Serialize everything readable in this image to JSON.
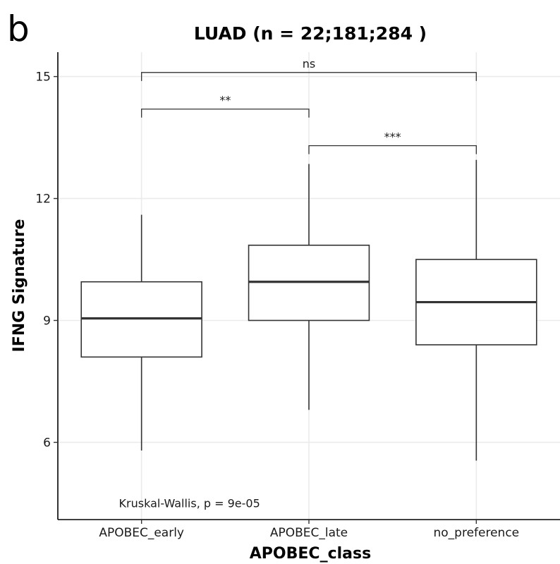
{
  "panel_label": "b",
  "chart_data": {
    "type": "box",
    "title": "LUAD (n =  22;181;284 )",
    "xlabel": "APOBEC_class",
    "ylabel": "IFNG Signature",
    "ylim": [
      4.1,
      15.6
    ],
    "yticks": [
      6,
      9,
      12,
      15
    ],
    "grid": true,
    "categories": [
      "APOBEC_early",
      "APOBEC_late",
      "no_preference"
    ],
    "boxes": [
      {
        "category": "APOBEC_early",
        "whisker_low": 5.8,
        "q1": 8.1,
        "median": 9.05,
        "q3": 9.95,
        "whisker_high": 11.6
      },
      {
        "category": "APOBEC_late",
        "whisker_low": 6.8,
        "q1": 9.0,
        "median": 9.95,
        "q3": 10.85,
        "whisker_high": 12.85
      },
      {
        "category": "no_preference",
        "whisker_low": 5.55,
        "q1": 8.4,
        "median": 9.45,
        "q3": 10.5,
        "whisker_high": 12.95
      }
    ],
    "comparisons": [
      {
        "from": "APOBEC_early",
        "to": "APOBEC_late",
        "y": 14.2,
        "label": "**"
      },
      {
        "from": "APOBEC_late",
        "to": "no_preference",
        "y": 13.3,
        "label": "***"
      },
      {
        "from": "APOBEC_early",
        "to": "no_preference",
        "y": 15.1,
        "label": "ns"
      }
    ],
    "annotation": {
      "text": "Kruskal-Wallis, p = 9e-05",
      "x_category": "APOBEC_early",
      "y": 4.4
    }
  }
}
